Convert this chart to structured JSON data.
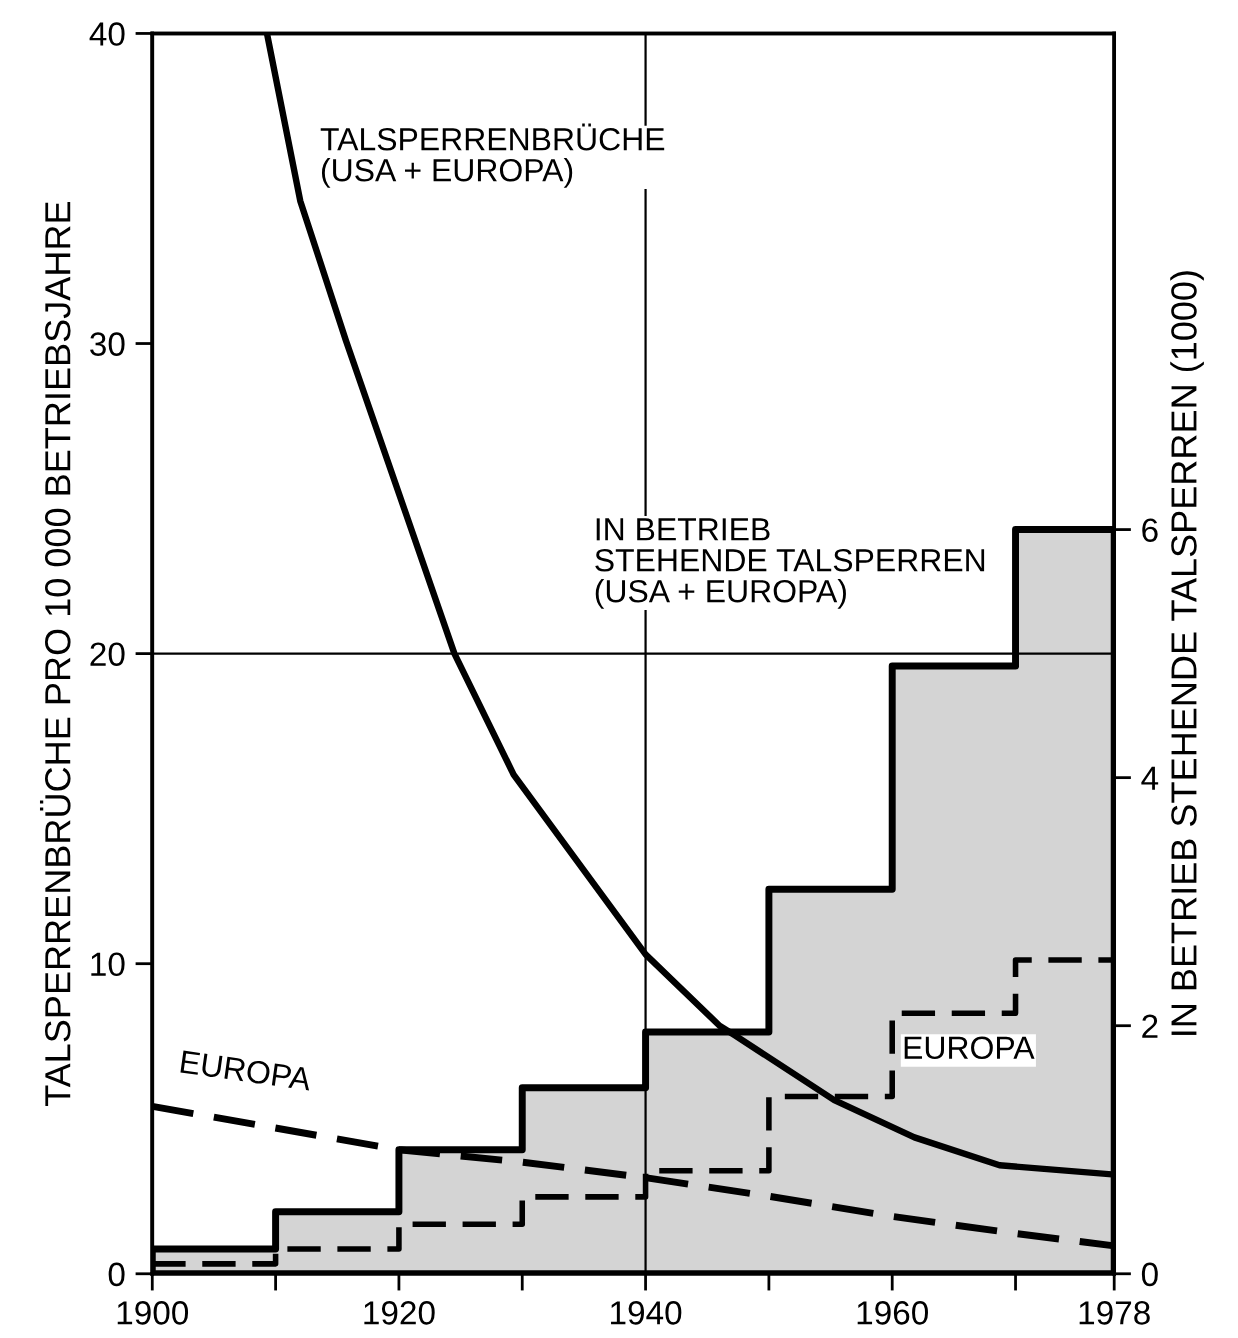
{
  "chart_data": {
    "type": "line",
    "xlabel": null,
    "ylabel": "TALSPERRENBRÜCHE PRO 10 000 BETRIEBSJAHRE",
    "y2label": "IN BETRIEB STEHENDE TALSPERREN (1000)",
    "xlim": [
      1900,
      1978
    ],
    "xticks": [
      1900,
      {
        "value": 1910,
        "label": null
      },
      1920,
      {
        "value": 1930,
        "label": null
      },
      1940,
      {
        "value": 1950,
        "label": null
      },
      1960,
      {
        "value": 1970,
        "label": null
      },
      1978
    ],
    "ylim": [
      0,
      40
    ],
    "yticks": [
      0,
      10,
      20,
      30,
      40
    ],
    "y2lim": [
      0,
      10
    ],
    "y2ticks": [
      0,
      2,
      4,
      6
    ],
    "grid": false,
    "ref_lines": [
      {
        "axis": "x",
        "value": 1940,
        "color": "#000000"
      },
      {
        "axis": "y",
        "value": 20,
        "color": "#000000"
      }
    ],
    "series": [
      {
        "name": "IN BETRIEB\nSTEHENDE TALSPERREN\n(USA + EUROPA)",
        "type": "area",
        "axis": "y2",
        "color": "#d4d4d4",
        "x": [
          1900,
          1910,
          1920,
          1930,
          1940,
          1950,
          1960,
          1970,
          1978
        ],
        "values": [
          0.2,
          0.5,
          1.0,
          1.5,
          1.95,
          3.1,
          4.9,
          6.0,
          6.0
        ]
      },
      {
        "name": "EUROPA",
        "type": "step",
        "axis": "y2",
        "color": "#000000",
        "line_style": "dashed",
        "x": [
          1900,
          1910,
          1920,
          1930,
          1940,
          1950,
          1960,
          1970,
          1978
        ],
        "values": [
          0.08,
          0.2,
          0.4,
          0.62,
          0.83,
          1.43,
          2.1,
          2.53,
          2.53
        ]
      },
      {
        "name": "TALSPERRENBRÜCHE\n(USA + EUROPA)",
        "color": "#000000",
        "line_style": "solid",
        "x": [
          1909.3,
          1912,
          1915.7,
          1924.5,
          1929.3,
          1940,
          1946,
          1947.2,
          1955.3,
          1961.8,
          1968.7,
          1978
        ],
        "values": [
          40,
          34.6,
          30.1,
          20,
          16.1,
          10.3,
          8.0,
          7.7,
          5.6,
          4.4,
          3.5,
          3.2
        ]
      },
      {
        "name": "EUROPA",
        "color": "#000000",
        "line_style": "dashed",
        "x": [
          1900,
          1920,
          1930,
          1940,
          1950,
          1960,
          1970,
          1978
        ],
        "values": [
          5.4,
          4.0,
          3.6,
          3.1,
          2.5,
          1.85,
          1.3,
          0.9
        ]
      }
    ]
  }
}
